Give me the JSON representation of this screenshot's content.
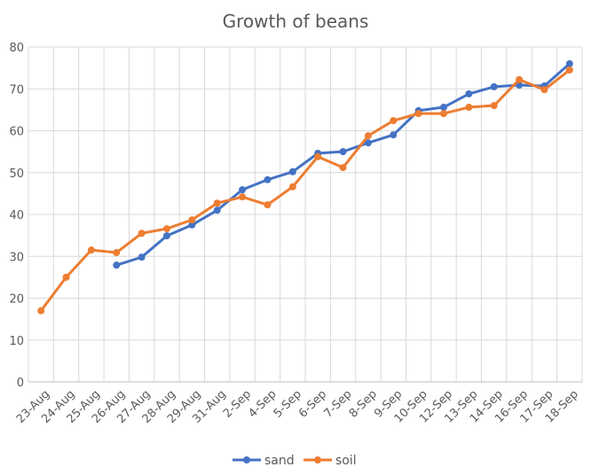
{
  "chart_data": {
    "type": "line",
    "title": "Growth of beans",
    "xlabel": "",
    "ylabel": "",
    "ylim": [
      0,
      80
    ],
    "yticks": [
      0,
      10,
      20,
      30,
      40,
      50,
      60,
      70,
      80
    ],
    "grid": true,
    "legend": "bottom",
    "categories": [
      "23-Aug",
      "24-Aug",
      "25-Aug",
      "26-Aug",
      "27-Aug",
      "28-Aug",
      "29-Aug",
      "31-Aug",
      "2-Sep",
      "4-Sep",
      "5-Sep",
      "6-Sep",
      "7-Sep",
      "8-Sep",
      "9-Sep",
      "10-Sep",
      "12-Sep",
      "13-Sep",
      "14-Sep",
      "16-Sep",
      "17-Sep",
      "18-Sep"
    ],
    "series": [
      {
        "name": "sand",
        "color": "#4472C4",
        "values": [
          null,
          null,
          null,
          27.9,
          29.8,
          34.9,
          37.5,
          41.0,
          45.9,
          48.3,
          50.2,
          54.6,
          55.0,
          57.1,
          59.0,
          64.8,
          65.6,
          68.8,
          70.5,
          70.9,
          70.7,
          76.0
        ]
      },
      {
        "name": "soil",
        "color": "#ED7D31",
        "values": [
          17.0,
          25.0,
          31.5,
          30.9,
          35.5,
          36.6,
          38.7,
          42.7,
          44.2,
          42.3,
          46.6,
          53.8,
          51.2,
          58.8,
          62.4,
          64.1,
          64.1,
          65.6,
          66.0,
          72.2,
          69.8,
          74.5
        ]
      }
    ]
  }
}
